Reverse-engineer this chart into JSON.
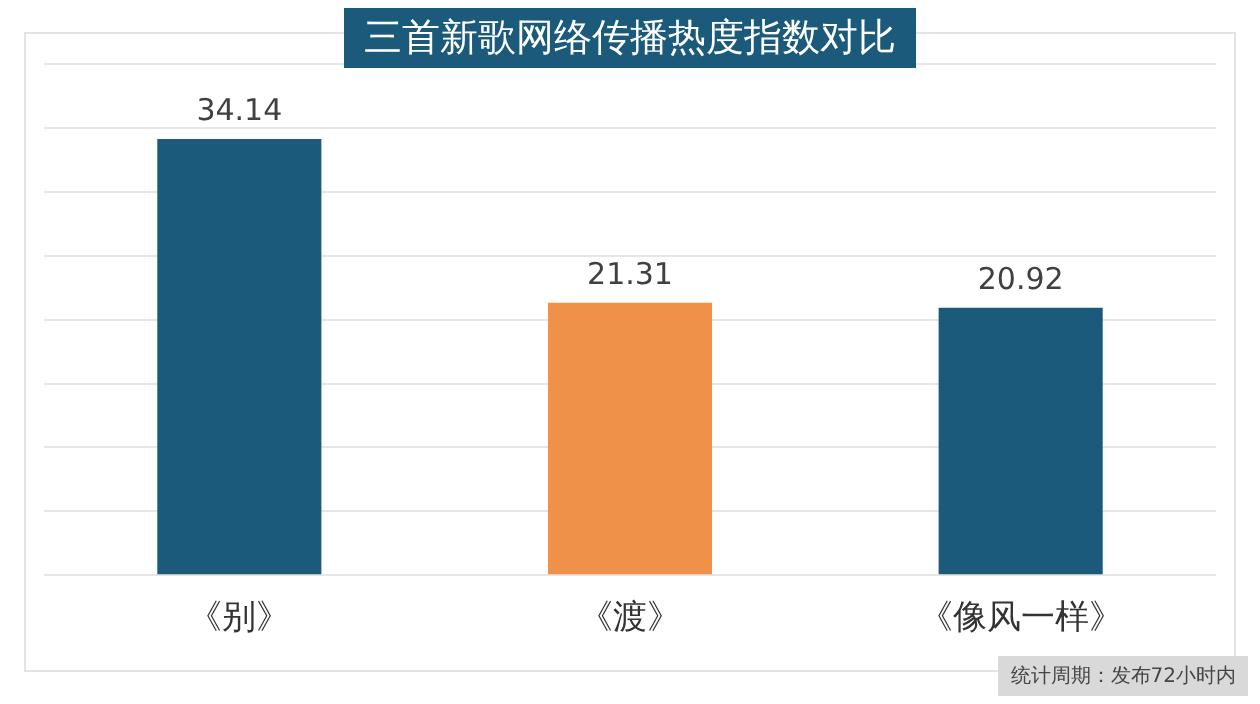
{
  "chart_data": {
    "type": "bar",
    "title": "三首新歌网络传播热度指数对比",
    "categories": [
      "《别》",
      "《渡》",
      "《像风一样》"
    ],
    "values": [
      34.14,
      21.31,
      20.92
    ],
    "colors": [
      "#1b5a7a",
      "#f0914a",
      "#1b5a7a"
    ],
    "ylim": [
      0,
      40
    ],
    "yticks": [
      {
        "value": 0,
        "label": null
      },
      {
        "value": 5,
        "label": null
      },
      {
        "value": 10,
        "label": null
      },
      {
        "value": 15,
        "label": null
      },
      {
        "value": 20,
        "label": null
      },
      {
        "value": 25,
        "label": null
      },
      {
        "value": 30,
        "label": null
      },
      {
        "value": 35,
        "label": null
      },
      {
        "value": 40,
        "label": null
      }
    ],
    "tick_labels": "x",
    "grid": "y",
    "data_labels": true,
    "legend": false,
    "annotations": [
      "统计周期：发布72小时内"
    ]
  }
}
